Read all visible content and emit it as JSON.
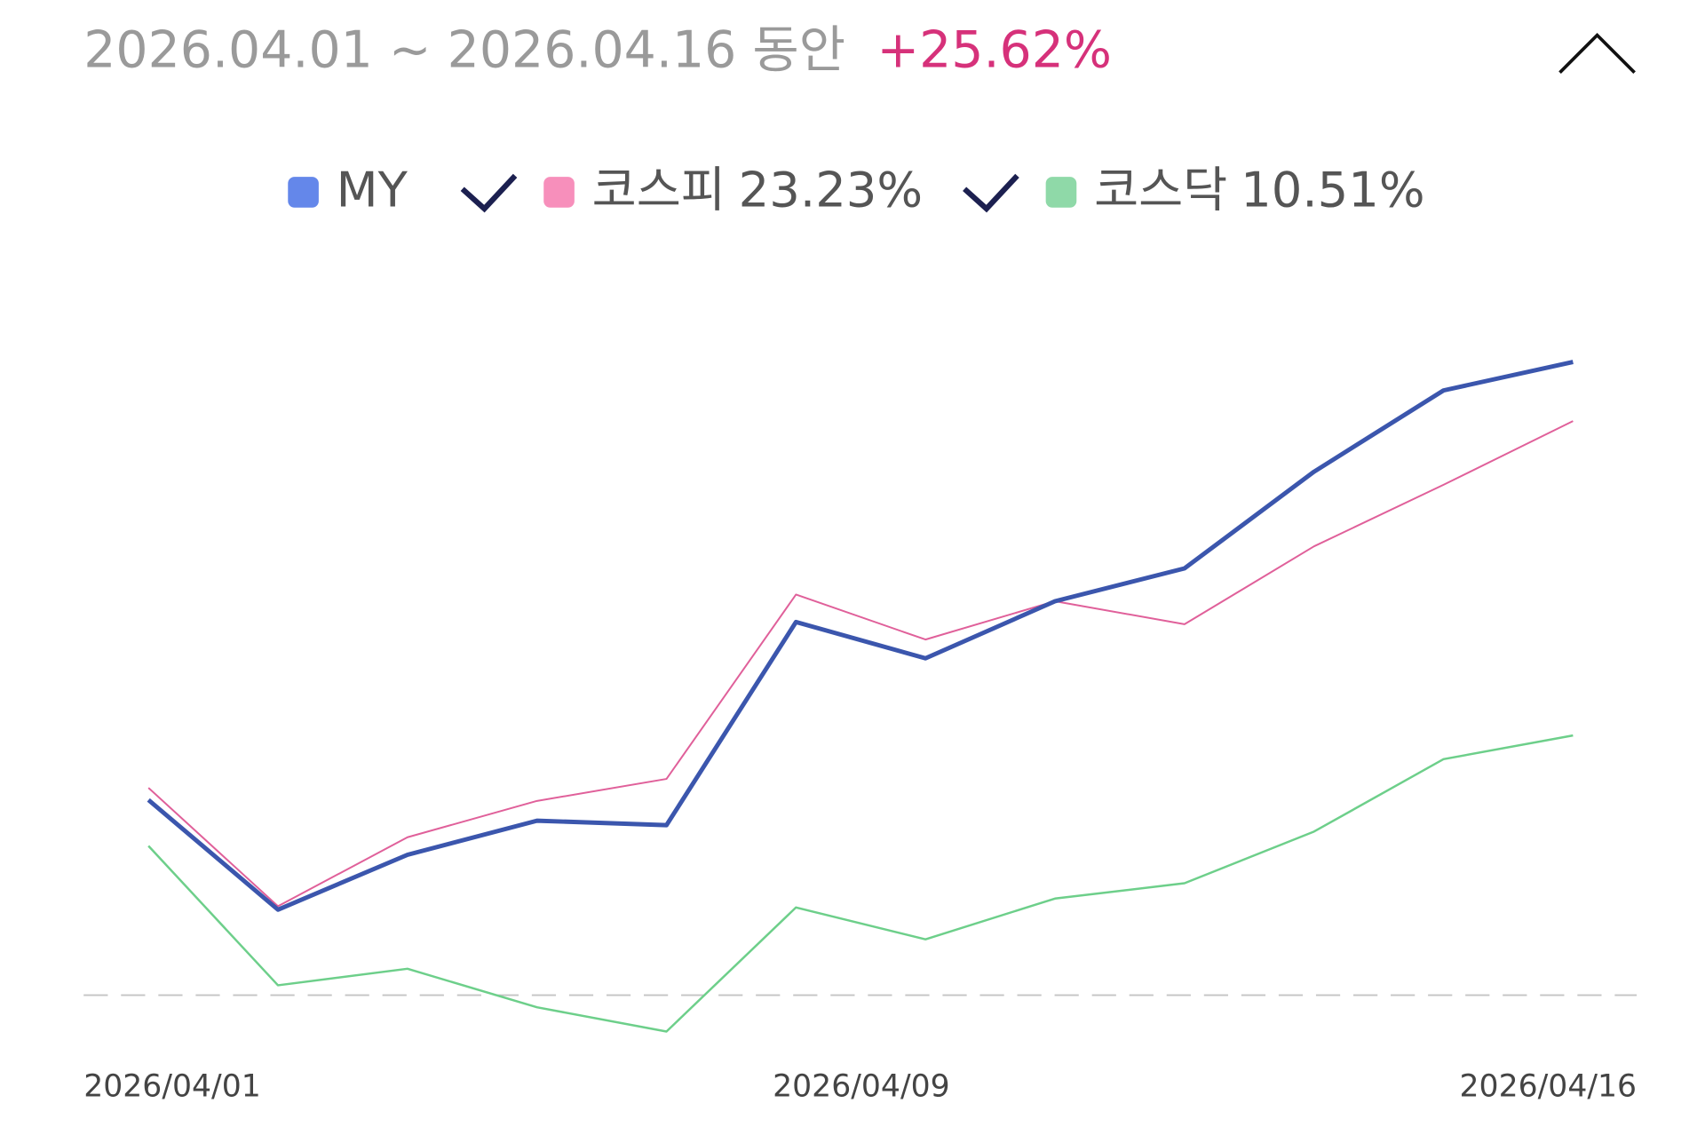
{
  "header": {
    "period": "2026.04.01 ~ 2026.04.16 동안",
    "return": "+25.62%"
  },
  "chart_data": {
    "type": "line",
    "x_labels": [
      "2026/04/01",
      "2026/04/09",
      "2026/04/16"
    ],
    "ylim": [
      -2.4,
      29.6
    ],
    "baseline": 0,
    "series": [
      {
        "name": "MY",
        "color": "#3b56ad",
        "legend_color": "#6487ea",
        "values": [
          7.9,
          3.46,
          5.68,
          7.06,
          6.88,
          15.1,
          13.63,
          15.94,
          17.27,
          21.18,
          24.47,
          25.62
        ]
      },
      {
        "name": "코스피",
        "legend_value": "23.23%",
        "color": "#e0609a",
        "legend_color": "#f78fbb",
        "values": [
          8.39,
          3.6,
          6.39,
          7.86,
          8.75,
          16.21,
          14.39,
          15.94,
          15.01,
          18.16,
          20.65,
          23.23
        ]
      },
      {
        "name": "코스닥",
        "legend_value": "10.51%",
        "color": "#6dcf8a",
        "legend_color": "#8fd9a8",
        "values": [
          6.04,
          0.4,
          1.07,
          -0.49,
          -1.47,
          3.55,
          2.26,
          3.91,
          4.53,
          6.62,
          9.55,
          10.51
        ]
      }
    ]
  }
}
